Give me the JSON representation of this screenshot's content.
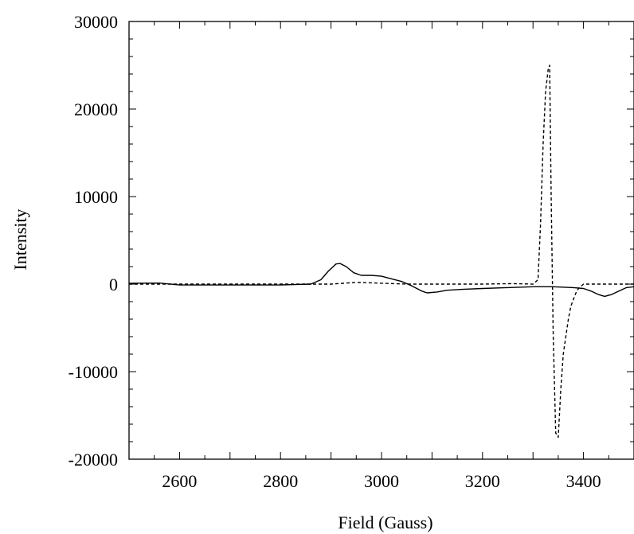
{
  "chart_data": {
    "type": "line",
    "title": "",
    "xlabel": "Field (Gauss)",
    "ylabel": "Intensity",
    "xlim": [
      2500,
      3500
    ],
    "ylim": [
      -20000,
      30000
    ],
    "xticks": [
      2600,
      2800,
      3000,
      3200,
      3400
    ],
    "xtick_labels": [
      "2600",
      "2800",
      "3000",
      "3200",
      "3400"
    ],
    "yticks": [
      -20000,
      -10000,
      0,
      10000,
      20000,
      30000
    ],
    "ytick_labels": [
      "-20000",
      "-10000",
      "0",
      "10000",
      "20000",
      "30000"
    ],
    "grid": false,
    "legend": "none",
    "series": [
      {
        "style": "solid",
        "color": "#000000",
        "x": [
          2500,
          2560,
          2600,
          2700,
          2800,
          2860,
          2880,
          2895,
          2910,
          2918,
          2930,
          2945,
          2960,
          2980,
          3000,
          3020,
          3040,
          3060,
          3080,
          3090,
          3110,
          3130,
          3160,
          3200,
          3250,
          3300,
          3340,
          3380,
          3400,
          3415,
          3430,
          3442,
          3455,
          3470,
          3485,
          3500
        ],
        "y": [
          100,
          120,
          -100,
          -100,
          -90,
          0,
          500,
          1500,
          2300,
          2350,
          2000,
          1300,
          1000,
          1000,
          900,
          600,
          300,
          -200,
          -800,
          -1000,
          -900,
          -700,
          -600,
          -500,
          -400,
          -300,
          -300,
          -400,
          -500,
          -800,
          -1200,
          -1400,
          -1200,
          -800,
          -400,
          -300
        ]
      },
      {
        "style": "dashed",
        "color": "#000000",
        "x": [
          2500,
          2700,
          2900,
          2950,
          3000,
          3050,
          3100,
          3200,
          3260,
          3300,
          3310,
          3315,
          3320,
          3325,
          3330,
          3333,
          3336,
          3340,
          3345,
          3350,
          3355,
          3360,
          3365,
          3370,
          3375,
          3385,
          3390,
          3400,
          3450,
          3500
        ],
        "y": [
          0,
          0,
          0,
          200,
          100,
          0,
          0,
          0,
          50,
          0,
          500,
          7000,
          16000,
          22000,
          24500,
          25000,
          10000,
          -6000,
          -17000,
          -17500,
          -12000,
          -8000,
          -6000,
          -4000,
          -2500,
          -1000,
          -500,
          0,
          0,
          0
        ]
      }
    ]
  }
}
